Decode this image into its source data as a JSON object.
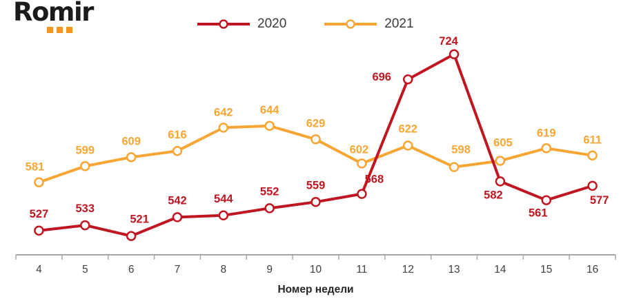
{
  "logo": {
    "text": "Romir",
    "dot_color": "#F7941E",
    "dot_count": 3
  },
  "legend": {
    "items": [
      {
        "label": "2020",
        "color": "#C01622"
      },
      {
        "label": "2021",
        "color": "#F7A633"
      }
    ]
  },
  "chart_data": {
    "type": "line",
    "title": "",
    "xlabel": "Номер недели",
    "ylabel": "",
    "categories": [
      "4",
      "5",
      "6",
      "7",
      "8",
      "9",
      "10",
      "11",
      "12",
      "13",
      "14",
      "15",
      "16"
    ],
    "series": [
      {
        "name": "2020",
        "color": "#C01622",
        "values": [
          527,
          533,
          521,
          542,
          544,
          552,
          559,
          568,
          696,
          724,
          582,
          561,
          577
        ],
        "label_offsets": [
          [
            0,
            -19
          ],
          [
            0,
            -19
          ],
          [
            12,
            -19
          ],
          [
            0,
            -19
          ],
          [
            0,
            -19
          ],
          [
            0,
            -19
          ],
          [
            0,
            -19
          ],
          [
            18,
            -16
          ],
          [
            -38,
            2
          ],
          [
            -8,
            -14
          ],
          [
            -10,
            25
          ],
          [
            -12,
            24
          ],
          [
            10,
            26
          ]
        ]
      },
      {
        "name": "2021",
        "color": "#F7A633",
        "values": [
          581,
          599,
          609,
          616,
          642,
          644,
          629,
          602,
          622,
          598,
          605,
          619,
          611
        ],
        "label_offsets": [
          [
            -6,
            -17
          ],
          [
            0,
            -18
          ],
          [
            0,
            -18
          ],
          [
            0,
            -18
          ],
          [
            0,
            -17
          ],
          [
            0,
            -18
          ],
          [
            0,
            -18
          ],
          [
            -4,
            -15
          ],
          [
            0,
            -19
          ],
          [
            10,
            -20
          ],
          [
            4,
            -21
          ],
          [
            0,
            -17
          ],
          [
            0,
            -17
          ]
        ]
      }
    ],
    "ylim": [
      500,
      740
    ],
    "grid": false,
    "data_labels": true,
    "legend_position": "top-center",
    "marker": "open-circle",
    "marker_fill": "#FDFDFB",
    "axis_color": "#A6A6A6",
    "tick_label_color": "#404040",
    "xlabel_color": "#262626"
  }
}
